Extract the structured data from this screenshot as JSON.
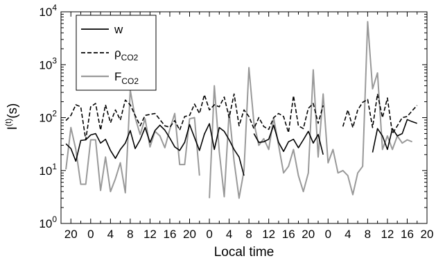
{
  "chart_data": {
    "type": "line",
    "xlabel": "Local time",
    "ylabel": {
      "base": "I",
      "sup": "(t)",
      "rest": "(s)"
    },
    "yscale": "log",
    "ylim": [
      1,
      10000
    ],
    "xlim": [
      -6,
      68
    ],
    "grid": false,
    "legend_placement": "top-left",
    "x_ticks": [
      {
        "pos": -4,
        "label": "20"
      },
      {
        "pos": 0,
        "label": "0"
      },
      {
        "pos": 4,
        "label": "4"
      },
      {
        "pos": 8,
        "label": "8"
      },
      {
        "pos": 12,
        "label": "12"
      },
      {
        "pos": 16,
        "label": "16"
      },
      {
        "pos": 20,
        "label": "20"
      },
      {
        "pos": 24,
        "label": "0"
      },
      {
        "pos": 28,
        "label": "4"
      },
      {
        "pos": 32,
        "label": "8"
      },
      {
        "pos": 36,
        "label": "12"
      },
      {
        "pos": 40,
        "label": "16"
      },
      {
        "pos": 44,
        "label": "20"
      },
      {
        "pos": 48,
        "label": "0"
      },
      {
        "pos": 52,
        "label": "4"
      },
      {
        "pos": 56,
        "label": "8"
      },
      {
        "pos": 60,
        "label": "12"
      },
      {
        "pos": 64,
        "label": "16"
      },
      {
        "pos": 68,
        "label": "20"
      }
    ],
    "y_ticks": [
      {
        "value": 1,
        "base": "10",
        "exp": "0"
      },
      {
        "value": 10,
        "base": "10",
        "exp": "1"
      },
      {
        "value": 100,
        "base": "10",
        "exp": "2"
      },
      {
        "value": 1000,
        "base": "10",
        "exp": "3"
      },
      {
        "value": 10000,
        "base": "10",
        "exp": "4"
      }
    ],
    "series": [
      {
        "name": "w",
        "name_sub": "",
        "color": "#000000",
        "dash": "solid",
        "points": [
          [
            -5,
            32
          ],
          [
            -4,
            26
          ],
          [
            -3,
            15
          ],
          [
            -2,
            37
          ],
          [
            -1,
            38
          ],
          [
            0,
            47
          ],
          [
            1,
            50
          ],
          [
            2,
            33
          ],
          [
            3,
            39
          ],
          [
            4,
            24
          ],
          [
            5,
            17
          ],
          [
            6,
            25
          ],
          [
            7,
            33
          ],
          [
            8,
            57
          ],
          [
            9,
            26
          ],
          [
            10,
            38
          ],
          [
            11,
            65
          ],
          [
            12,
            34
          ],
          [
            13,
            57
          ],
          [
            14,
            72
          ],
          [
            15,
            58
          ],
          [
            16,
            41
          ],
          [
            17,
            28
          ],
          [
            18,
            24
          ],
          [
            19,
            34
          ],
          [
            20,
            74
          ],
          [
            21,
            42
          ],
          [
            22,
            24
          ],
          [
            23,
            49
          ],
          [
            24,
            77
          ],
          [
            25,
            25
          ],
          [
            26,
            65
          ],
          [
            27,
            55
          ],
          [
            28,
            38
          ],
          [
            29,
            25
          ],
          [
            30,
            18
          ],
          [
            31,
            8
          ],
          [
            32,
            null
          ],
          [
            33,
            50
          ],
          [
            34,
            34
          ],
          [
            35,
            35
          ],
          [
            36,
            39
          ],
          [
            37,
            72
          ],
          [
            38,
            34
          ],
          [
            39,
            23
          ],
          [
            40,
            35
          ],
          [
            41,
            39
          ],
          [
            42,
            27
          ],
          [
            43,
            38
          ],
          [
            44,
            55
          ],
          [
            45,
            33
          ],
          [
            46,
            48
          ],
          [
            47,
            20
          ],
          [
            48,
            null
          ],
          [
            49,
            null
          ],
          [
            50,
            20
          ],
          [
            51,
            null
          ],
          [
            52,
            null
          ],
          [
            53,
            null
          ],
          [
            54,
            null
          ],
          [
            55,
            null
          ],
          [
            56,
            null
          ],
          [
            57,
            22
          ],
          [
            58,
            62
          ],
          [
            59,
            45
          ],
          [
            60,
            25
          ],
          [
            61,
            62
          ],
          [
            62,
            45
          ],
          [
            63,
            50
          ],
          [
            64,
            92
          ],
          [
            65,
            84
          ],
          [
            66,
            78
          ]
        ]
      },
      {
        "name": "ρ",
        "name_sub": "CO2",
        "color": "#000000",
        "dash": "dashed",
        "points": [
          [
            -5,
            88
          ],
          [
            -4,
            110
          ],
          [
            -3,
            175
          ],
          [
            -2,
            160
          ],
          [
            -1,
            38
          ],
          [
            0,
            160
          ],
          [
            1,
            185
          ],
          [
            2,
            58
          ],
          [
            3,
            175
          ],
          [
            4,
            80
          ],
          [
            5,
            140
          ],
          [
            6,
            90
          ],
          [
            7,
            215
          ],
          [
            8,
            175
          ],
          [
            9,
            110
          ],
          [
            10,
            70
          ],
          [
            11,
            110
          ],
          [
            12,
            115
          ],
          [
            13,
            120
          ],
          [
            14,
            92
          ],
          [
            15,
            70
          ],
          [
            16,
            66
          ],
          [
            17,
            88
          ],
          [
            18,
            58
          ],
          [
            19,
            105
          ],
          [
            20,
            110
          ],
          [
            21,
            180
          ],
          [
            22,
            120
          ],
          [
            23,
            270
          ],
          [
            24,
            140
          ],
          [
            25,
            175
          ],
          [
            26,
            160
          ],
          [
            27,
            245
          ],
          [
            28,
            100
          ],
          [
            29,
            280
          ],
          [
            30,
            70
          ],
          [
            31,
            140
          ],
          [
            32,
            105
          ],
          [
            33,
            62
          ],
          [
            34,
            100
          ],
          [
            35,
            68
          ],
          [
            36,
            60
          ],
          [
            37,
            100
          ],
          [
            38,
            120
          ],
          [
            39,
            105
          ],
          [
            40,
            52
          ],
          [
            41,
            260
          ],
          [
            42,
            70
          ],
          [
            43,
            62
          ],
          [
            44,
            150
          ],
          [
            45,
            185
          ],
          [
            46,
            78
          ],
          [
            47,
            170
          ],
          [
            48,
            null
          ],
          [
            49,
            null
          ],
          [
            50,
            null
          ],
          [
            51,
            68
          ],
          [
            52,
            140
          ],
          [
            53,
            65
          ],
          [
            54,
            140
          ],
          [
            55,
            195
          ],
          [
            56,
            220
          ],
          [
            57,
            65
          ],
          [
            58,
            280
          ],
          [
            59,
            100
          ],
          [
            60,
            235
          ],
          [
            61,
            50
          ],
          [
            62,
            70
          ],
          [
            63,
            100
          ],
          [
            64,
            105
          ],
          [
            65,
            135
          ],
          [
            66,
            170
          ]
        ]
      },
      {
        "name": "F",
        "name_sub": "CO2",
        "color": "#999999",
        "dash": "solid",
        "points": [
          [
            -5,
            10.5
          ],
          [
            -4,
            65
          ],
          [
            -3,
            25
          ],
          [
            -2,
            5.5
          ],
          [
            -1,
            5.5
          ],
          [
            0,
            38
          ],
          [
            1,
            38
          ],
          [
            2,
            4.2
          ],
          [
            3,
            18
          ],
          [
            4,
            4
          ],
          [
            5,
            7
          ],
          [
            6,
            14
          ],
          [
            7,
            3.8
          ],
          [
            8,
            330
          ],
          [
            9,
            100
          ],
          [
            10,
            48
          ],
          [
            11,
            95
          ],
          [
            12,
            28
          ],
          [
            13,
            55
          ],
          [
            14,
            45
          ],
          [
            15,
            27
          ],
          [
            16,
            60
          ],
          [
            17,
            120
          ],
          [
            18,
            13
          ],
          [
            19,
            13
          ],
          [
            20,
            95
          ],
          [
            21,
            100
          ],
          [
            22,
            8
          ],
          [
            23,
            null
          ],
          [
            24,
            3
          ],
          [
            25,
            400
          ],
          [
            26,
            23
          ],
          [
            27,
            3.2
          ],
          [
            28,
            130
          ],
          [
            29,
            15
          ],
          [
            30,
            3
          ],
          [
            31,
            10
          ],
          [
            32,
            880
          ],
          [
            33,
            80
          ],
          [
            34,
            30
          ],
          [
            35,
            40
          ],
          [
            36,
            25
          ],
          [
            37,
            100
          ],
          [
            38,
            30
          ],
          [
            39,
            9
          ],
          [
            40,
            12
          ],
          [
            41,
            25
          ],
          [
            42,
            8
          ],
          [
            43,
            4
          ],
          [
            44,
            9
          ],
          [
            45,
            800
          ],
          [
            46,
            18
          ],
          [
            47,
            280
          ],
          [
            48,
            14
          ],
          [
            49,
            25
          ],
          [
            50,
            9
          ],
          [
            51,
            10
          ],
          [
            52,
            8
          ],
          [
            53,
            3.5
          ],
          [
            54,
            9
          ],
          [
            55,
            12
          ],
          [
            56,
            6500
          ],
          [
            57,
            350
          ],
          [
            58,
            700
          ],
          [
            59,
            25
          ],
          [
            60,
            45
          ],
          [
            61,
            25
          ],
          [
            62,
            45
          ],
          [
            63,
            33
          ],
          [
            64,
            38
          ],
          [
            65,
            35
          ]
        ]
      }
    ]
  }
}
